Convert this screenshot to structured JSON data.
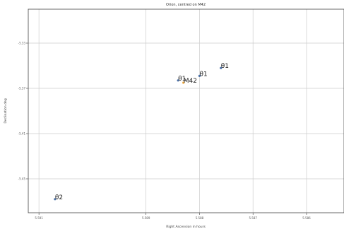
{
  "chart_data": {
    "type": "scatter",
    "title": "Orion, centred on M42",
    "xlabel": "Right Ascension in hours",
    "ylabel": "Declination deg",
    "xlim": [
      5.5912,
      5.5853
    ],
    "ylim": [
      -5.48,
      -5.3
    ],
    "x_ticks": [
      {
        "value": 5.591,
        "label": "5.591"
      },
      {
        "value": 5.589,
        "label": "5.589"
      },
      {
        "value": 5.588,
        "label": "5.588"
      },
      {
        "value": 5.587,
        "label": "5.587"
      },
      {
        "value": 5.586,
        "label": "5.586"
      }
    ],
    "y_ticks": [
      {
        "value": -5.33,
        "label": "-5.33"
      },
      {
        "value": -5.37,
        "label": "-5.37"
      },
      {
        "value": -5.41,
        "label": "-5.41"
      },
      {
        "value": -5.45,
        "label": "-5.45"
      }
    ],
    "grid": true,
    "points": [
      {
        "label": "θ1",
        "x": 5.5884,
        "y": -5.363,
        "color": "#4a6fa5"
      },
      {
        "label": "θ1",
        "x": 5.588,
        "y": -5.359,
        "color": "#4a6fa5"
      },
      {
        "label": "θ1",
        "x": 5.5876,
        "y": -5.352,
        "color": "#4a6fa5"
      },
      {
        "label": "M42",
        "x": 5.5883,
        "y": -5.365,
        "color": "#e8a33d"
      },
      {
        "label": "θ2",
        "x": 5.5907,
        "y": -5.468,
        "color": "#4a6fa5"
      }
    ]
  }
}
